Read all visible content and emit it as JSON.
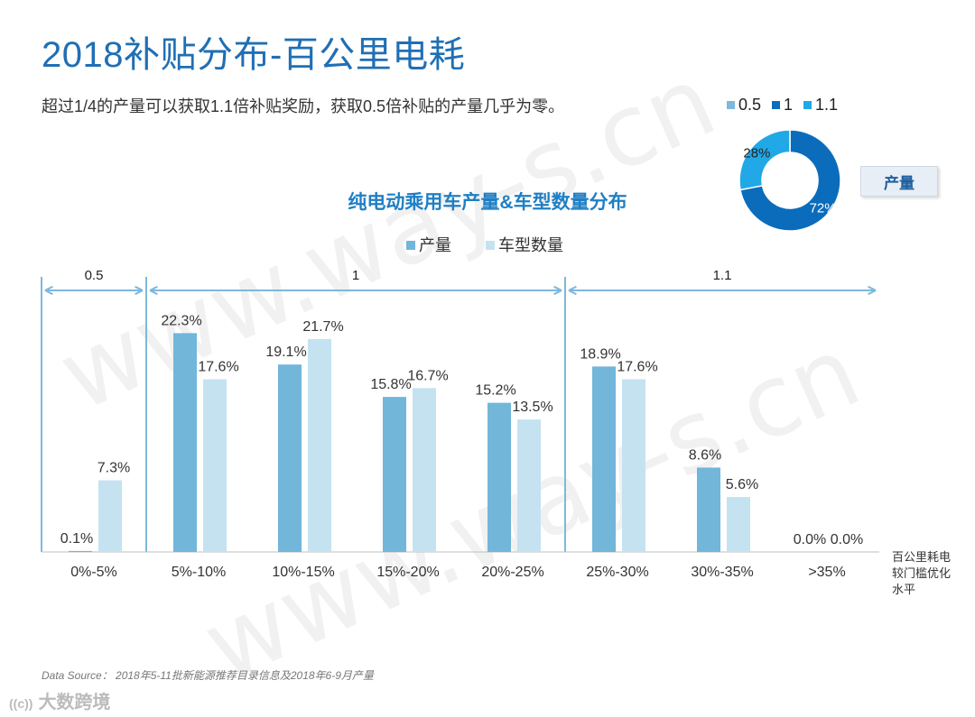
{
  "page": {
    "title": "2018补贴分布-百公里电耗",
    "subtitle": "超过1/4的产量可以获取1.1倍补贴奖励，获取0.5倍补贴的产量几乎为零。",
    "watermark": "www.way-s.cn",
    "source": "Data Source： 2018年5-11批新能源推荐目录信息及2018年6-9月产量",
    "brand": "大数跨境",
    "brand_logo": "((c))"
  },
  "donut": {
    "legend": [
      "0.5",
      "1",
      "1.1"
    ],
    "colors": [
      "#7fb8dd",
      "#0b6cbc",
      "#21a8e6"
    ],
    "values": [
      0,
      72,
      28
    ],
    "labels": [
      "",
      "72%",
      "28%"
    ],
    "tag": "产量"
  },
  "chart_data": {
    "type": "bar",
    "title": "纯电动乘用车产量&车型数量分布",
    "categories": [
      "0%-5%",
      "5%-10%",
      "10%-15%",
      "15%-20%",
      "20%-25%",
      "25%-30%",
      "30%-35%",
      ">35%"
    ],
    "series": [
      {
        "name": "产量",
        "values": [
          0.1,
          22.3,
          19.1,
          15.8,
          15.2,
          18.9,
          8.6,
          0.0
        ],
        "color": "#72b6da"
      },
      {
        "name": "车型数量",
        "values": [
          7.3,
          17.6,
          21.7,
          16.7,
          13.5,
          17.6,
          5.6,
          0.0
        ],
        "color": "#c5e2f1"
      }
    ],
    "data_labels": [
      [
        "0.1%",
        "22.3%",
        "19.1%",
        "15.8%",
        "15.2%",
        "18.9%",
        "8.6%",
        "0.0%"
      ],
      [
        "7.3%",
        "17.6%",
        "21.7%",
        "16.7%",
        "13.5%",
        "17.6%",
        "5.6%",
        "0.0%"
      ]
    ],
    "ylim": [
      0,
      25
    ],
    "xlabel_lines": [
      "百公里耗电",
      "较门槛优化",
      "水平"
    ],
    "groups": [
      {
        "label": "0.5",
        "from": 0,
        "to": 0
      },
      {
        "label": "1",
        "from": 1,
        "to": 4
      },
      {
        "label": "1.1",
        "from": 5,
        "to": 7
      }
    ]
  }
}
